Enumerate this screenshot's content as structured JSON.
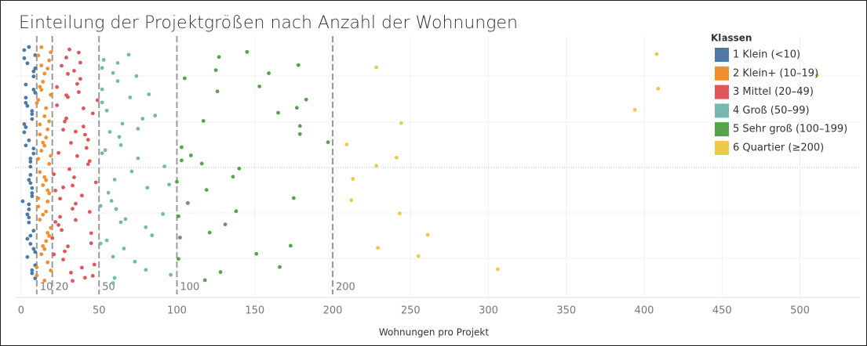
{
  "chart_data": {
    "type": "scatter",
    "title": "Einteilung der Projektgrößen nach Anzahl der Wohnungen",
    "xlabel": "Wohnungen pro Projekt",
    "legend_title": "Klassen",
    "legend_position": "upper right",
    "xlim": [
      -3.5,
      539
    ],
    "xticks": [
      0,
      50,
      100,
      150,
      200,
      250,
      300,
      350,
      400,
      450,
      500
    ],
    "grid": true,
    "reference_lines": [
      {
        "value": 10,
        "label": "10"
      },
      {
        "value": 20,
        "label": "20"
      },
      {
        "value": 50,
        "label": "50"
      },
      {
        "value": 100,
        "label": "100"
      },
      {
        "value": 200,
        "label": "200"
      }
    ],
    "series": [
      {
        "name": "1 Klein (<10)",
        "color": "#4e79a7",
        "values": [
          5,
          7,
          3,
          8,
          6,
          9,
          4,
          2,
          7,
          5,
          8,
          6,
          3,
          9,
          1,
          7,
          4,
          6,
          8,
          5,
          2,
          9,
          7,
          3,
          6,
          8,
          4,
          5,
          7,
          9,
          6,
          3,
          8,
          5,
          2,
          7,
          4,
          9,
          6,
          8,
          5,
          3,
          7,
          6,
          9,
          4,
          8,
          2,
          5,
          7
        ]
      },
      {
        "name": "2 Klein+ (10–19)",
        "color": "#f28e2b",
        "values": [
          12,
          15,
          17,
          11,
          14,
          19,
          13,
          16,
          18,
          10,
          15,
          12,
          17,
          14,
          19,
          11,
          16,
          13,
          18,
          15,
          12,
          17,
          10,
          14,
          19,
          16,
          13,
          18,
          11,
          15,
          17,
          12,
          14,
          19,
          16,
          13,
          18,
          10,
          15,
          11,
          17,
          14,
          12,
          19,
          16,
          13,
          18,
          15,
          11,
          17
        ]
      },
      {
        "name": "3 Mittel (20–49)",
        "color": "#e15759",
        "values": [
          22,
          35,
          41,
          27,
          30,
          45,
          24,
          38,
          33,
          29,
          47,
          21,
          36,
          26,
          43,
          31,
          39,
          23,
          28,
          44,
          34,
          25,
          40,
          32,
          48,
          37,
          20,
          42,
          29,
          35,
          46,
          27,
          31,
          38,
          24,
          41,
          33,
          22,
          49,
          30,
          36,
          26,
          44,
          28,
          39,
          34,
          23,
          45,
          32,
          37,
          25,
          40,
          21,
          43,
          30,
          35,
          27,
          46,
          33,
          29
        ]
      },
      {
        "name": "4 Groß (50–99)",
        "color": "#76b7b2",
        "values": [
          59,
          67,
          75,
          96,
          95,
          82,
          55,
          54,
          53,
          51,
          86,
          73,
          71,
          62,
          80,
          63,
          59,
          56,
          52,
          66,
          75,
          52,
          91,
          65,
          80,
          60,
          52,
          84,
          64,
          69,
          58,
          55,
          59,
          92,
          74,
          64,
          57,
          60,
          81,
          70,
          51,
          52,
          62,
          61,
          78
        ]
      },
      {
        "name": "5 Sehr groß (100–199)",
        "color": "#59a14f",
        "values": [
          103,
          125,
          101,
          179,
          128,
          100,
          126,
          102,
          103,
          127,
          107,
          165,
          101,
          140,
          105,
          131,
          179,
          118,
          119,
          183,
          173,
          109,
          178,
          138,
          117,
          166,
          136,
          153,
          121,
          197,
          145,
          175,
          177,
          151,
          116,
          159
        ]
      },
      {
        "name": "6 Quartier (≥200)",
        "color": "#edc948",
        "values": [
          229,
          241,
          228,
          243,
          244,
          306,
          213,
          409,
          261,
          209,
          408,
          212,
          394,
          255,
          228,
          511
        ]
      }
    ]
  }
}
